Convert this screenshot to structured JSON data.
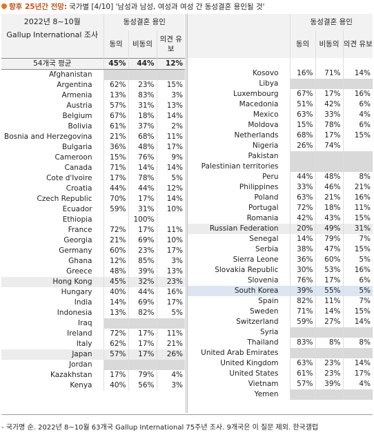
{
  "title": {
    "bold": "향후 25년간 전망:",
    "text": "국가별 [4/10] '남성과 남성, 여성과 여성 간 동성결혼 용인될 것'"
  },
  "header": {
    "period": "2022년 8~10월",
    "source": "Gallup International 조사",
    "group": "동성결혼 용인",
    "columns": [
      "동의",
      "비동의",
      "의견 유보"
    ]
  },
  "average": {
    "cells": [
      "54개국 평균",
      "45%",
      "44%",
      "12%"
    ]
  },
  "left": [
    {
      "cells": [
        "Afghanistan",
        null,
        null,
        null
      ]
    },
    {
      "cells": [
        "Argentina",
        "62%",
        "23%",
        "15%"
      ]
    },
    {
      "cells": [
        "Armenia",
        "13%",
        "83%",
        "3%"
      ]
    },
    {
      "cells": [
        "Austria",
        "57%",
        "31%",
        "13%"
      ]
    },
    {
      "cells": [
        "Belgium",
        "67%",
        "18%",
        "14%"
      ]
    },
    {
      "cells": [
        "Bolivia",
        "61%",
        "37%",
        "2%"
      ]
    },
    {
      "cells": [
        "Bosnia and Herzegovina",
        "21%",
        "68%",
        "11%"
      ]
    },
    {
      "cells": [
        "Bulgaria",
        "36%",
        "48%",
        "17%"
      ]
    },
    {
      "cells": [
        "Cameroon",
        "15%",
        "76%",
        "9%"
      ]
    },
    {
      "cells": [
        "Canada",
        "71%",
        "14%",
        "14%"
      ]
    },
    {
      "cells": [
        "Cote d'Ivoire",
        "17%",
        "78%",
        "5%"
      ]
    },
    {
      "cells": [
        "Croatia",
        "44%",
        "44%",
        "12%"
      ]
    },
    {
      "cells": [
        "Czech Republic",
        "70%",
        "17%",
        "14%"
      ]
    },
    {
      "cells": [
        "Ecuador",
        "59%",
        "31%",
        "10%"
      ]
    },
    {
      "cells": [
        "Ethiopia",
        null,
        "100%",
        null
      ]
    },
    {
      "cells": [
        "France",
        "72%",
        "17%",
        "11%"
      ]
    },
    {
      "cells": [
        "Georgia",
        "21%",
        "69%",
        "10%"
      ]
    },
    {
      "cells": [
        "Germany",
        "60%",
        "23%",
        "17%"
      ]
    },
    {
      "cells": [
        "Ghana",
        "12%",
        "85%",
        "3%"
      ]
    },
    {
      "cells": [
        "Greece",
        "48%",
        "39%",
        "13%"
      ]
    },
    {
      "cells": [
        "Hong Kong",
        "45%",
        "32%",
        "23%"
      ],
      "highlight": "#ececec"
    },
    {
      "cells": [
        "Hungary",
        "40%",
        "44%",
        "16%"
      ]
    },
    {
      "cells": [
        "India",
        "14%",
        "69%",
        "17%"
      ]
    },
    {
      "cells": [
        "Indonesia",
        "13%",
        "82%",
        "5%"
      ]
    },
    {
      "cells": [
        "Iraq",
        null,
        null,
        null
      ]
    },
    {
      "cells": [
        "Ireland",
        "72%",
        "17%",
        "11%"
      ]
    },
    {
      "cells": [
        "Italy",
        "62%",
        "17%",
        "21%"
      ]
    },
    {
      "cells": [
        "Japan",
        "57%",
        "17%",
        "26%"
      ],
      "highlight": "#ececec"
    },
    {
      "cells": [
        "Jordan",
        null,
        null,
        null
      ]
    },
    {
      "cells": [
        "Kazakhstan",
        "17%",
        "79%",
        "4%"
      ]
    },
    {
      "cells": [
        "Kenya",
        "40%",
        "56%",
        "3%"
      ]
    }
  ],
  "right": [
    {
      "cells": [
        "Kosovo",
        "16%",
        "71%",
        "14%"
      ]
    },
    {
      "cells": [
        "Libya",
        null,
        null,
        null
      ]
    },
    {
      "cells": [
        "Luxembourg",
        "67%",
        "17%",
        "16%"
      ]
    },
    {
      "cells": [
        "Macedonia",
        "51%",
        "42%",
        "6%"
      ]
    },
    {
      "cells": [
        "Mexico",
        "63%",
        "33%",
        "4%"
      ]
    },
    {
      "cells": [
        "Moldova",
        "15%",
        "78%",
        "6%"
      ]
    },
    {
      "cells": [
        "Netherlands",
        "68%",
        "17%",
        "15%"
      ]
    },
    {
      "cells": [
        "Nigeria",
        "26%",
        "74%",
        null
      ]
    },
    {
      "cells": [
        "Pakistan",
        null,
        null,
        null
      ]
    },
    {
      "cells": [
        "Palestinian territories",
        null,
        null,
        null
      ]
    },
    {
      "cells": [
        "Peru",
        "44%",
        "48%",
        "8%"
      ]
    },
    {
      "cells": [
        "Philippines",
        "33%",
        "46%",
        "21%"
      ]
    },
    {
      "cells": [
        "Poland",
        "63%",
        "21%",
        "16%"
      ]
    },
    {
      "cells": [
        "Portugal",
        "72%",
        "18%",
        "11%"
      ]
    },
    {
      "cells": [
        "Romania",
        "42%",
        "43%",
        "15%"
      ]
    },
    {
      "cells": [
        "Russian Federation",
        "20%",
        "49%",
        "31%"
      ],
      "highlight": "#ececec"
    },
    {
      "cells": [
        "Senegal",
        "14%",
        "79%",
        "7%"
      ]
    },
    {
      "cells": [
        "Serbia",
        "38%",
        "47%",
        "15%"
      ]
    },
    {
      "cells": [
        "Sierra Leone",
        "36%",
        "60%",
        "5%"
      ]
    },
    {
      "cells": [
        "Slovakia Republic",
        "30%",
        "53%",
        "16%"
      ]
    },
    {
      "cells": [
        "Slovenia",
        "76%",
        "17%",
        "6%"
      ]
    },
    {
      "cells": [
        "South Korea",
        "39%",
        "55%",
        "5%"
      ],
      "highlight": "#dce6f2"
    },
    {
      "cells": [
        "Spain",
        "82%",
        "11%",
        "7%"
      ]
    },
    {
      "cells": [
        "Sweden",
        "71%",
        "14%",
        "15%"
      ]
    },
    {
      "cells": [
        "Switzerland",
        "59%",
        "27%",
        "14%"
      ]
    },
    {
      "cells": [
        "Syria",
        null,
        null,
        null
      ]
    },
    {
      "cells": [
        "Thailand",
        "83%",
        "8%",
        "8%"
      ]
    },
    {
      "cells": [
        "United Arab Emirates",
        null,
        null,
        null
      ]
    },
    {
      "cells": [
        "United Kingdom",
        "63%",
        "23%",
        "14%"
      ]
    },
    {
      "cells": [
        "United States",
        "61%",
        "23%",
        "17%"
      ]
    },
    {
      "cells": [
        "Vietnam",
        "57%",
        "39%",
        "4%"
      ]
    },
    {
      "cells": [
        "Yemen",
        null,
        null,
        null
      ]
    }
  ],
  "footnote": "- 국가명 순. 2022년 8~10월 63개국 Gallup International 75주년 조사. 9개국은 이 질문 제외. 한국갤럽"
}
